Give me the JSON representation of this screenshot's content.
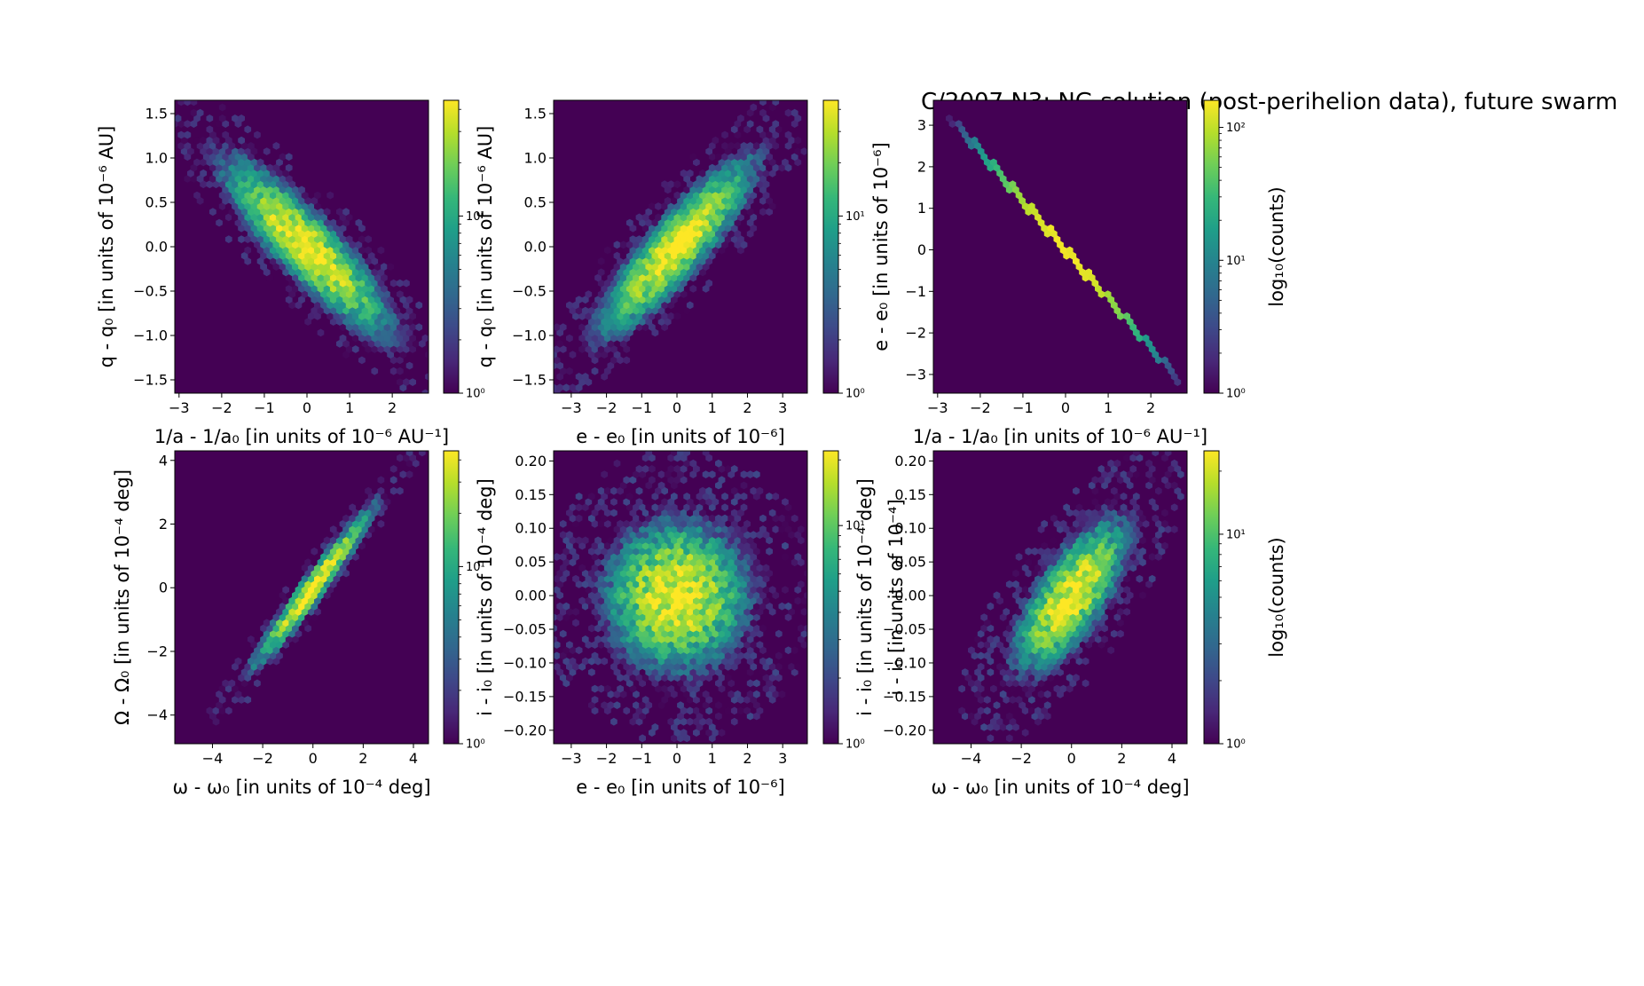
{
  "figure": {
    "title": "C/2007 N3:  NG solution (post-perihelion data), future swarm"
  },
  "colormap": {
    "name": "viridis",
    "stops": [
      "#440154",
      "#482878",
      "#3e4989",
      "#31688e",
      "#26828e",
      "#1f9e89",
      "#35b779",
      "#6ece58",
      "#b5de2b",
      "#fde725"
    ]
  },
  "chart_data": [
    {
      "type": "heatmap",
      "xlabel": "1/a - 1/a₀ [in units of 10⁻⁶ AU⁻¹]",
      "ylabel": "q - q₀ [in units of 10⁻⁶ AU]",
      "xlim": [
        -3.1,
        2.85
      ],
      "ylim": [
        -1.65,
        1.65
      ],
      "xticks": [
        -3,
        -2,
        -1,
        0,
        1,
        2
      ],
      "xtick_labels": [
        "−3",
        "−2",
        "−1",
        "0",
        "1",
        "2"
      ],
      "yticks": [
        -1.5,
        -1.0,
        -0.5,
        0.0,
        0.5,
        1.0,
        1.5
      ],
      "ytick_labels": [
        "−1.5",
        "−1.0",
        "−0.5",
        "0.0",
        "0.5",
        "1.0",
        "1.5"
      ],
      "distribution": {
        "mean": [
          0,
          0
        ],
        "sigma": [
          0.9,
          0.45
        ],
        "correlation": -0.88
      },
      "colorbar": {
        "scale": "log",
        "min": 1,
        "max": 45,
        "ticks": [
          1,
          10
        ],
        "tick_labels": [
          "10⁰",
          "10¹"
        ],
        "label": ""
      }
    },
    {
      "type": "heatmap",
      "xlabel": "e - e₀ [in units of 10⁻⁶]",
      "ylabel": "q - q₀ [in units of 10⁻⁶ AU]",
      "xlim": [
        -3.5,
        3.7
      ],
      "ylim": [
        -1.65,
        1.65
      ],
      "xticks": [
        -3,
        -2,
        -1,
        0,
        1,
        2,
        3
      ],
      "xtick_labels": [
        "−3",
        "−2",
        "−1",
        "0",
        "1",
        "2",
        "3"
      ],
      "yticks": [
        -1.5,
        -1.0,
        -0.5,
        0.0,
        0.5,
        1.0,
        1.5
      ],
      "ytick_labels": [
        "−1.5",
        "−1.0",
        "−0.5",
        "0.0",
        "0.5",
        "1.0",
        "1.5"
      ],
      "distribution": {
        "mean": [
          0,
          0
        ],
        "sigma": [
          1.0,
          0.45
        ],
        "correlation": 0.88
      },
      "colorbar": {
        "scale": "log",
        "min": 1,
        "max": 45,
        "ticks": [
          1,
          10
        ],
        "tick_labels": [
          "10⁰",
          "10¹"
        ],
        "label": ""
      }
    },
    {
      "type": "heatmap",
      "xlabel": "1/a - 1/a₀ [in units of 10⁻⁶ AU⁻¹]",
      "ylabel": "e - e₀ [in units of 10⁻⁶]",
      "xlim": [
        -3.1,
        2.85
      ],
      "ylim": [
        -3.45,
        3.6
      ],
      "xticks": [
        -3,
        -2,
        -1,
        0,
        1,
        2
      ],
      "xtick_labels": [
        "−3",
        "−2",
        "−1",
        "0",
        "1",
        "2"
      ],
      "yticks": [
        -3,
        -2,
        -1,
        0,
        1,
        2,
        3
      ],
      "ytick_labels": [
        "−3",
        "−2",
        "−1",
        "0",
        "1",
        "2",
        "3"
      ],
      "distribution": {
        "mean": [
          0,
          0
        ],
        "sigma": [
          0.9,
          1.0
        ],
        "correlation": -1.0,
        "slope": -1.18
      },
      "colorbar": {
        "scale": "log",
        "min": 1,
        "max": 160,
        "ticks": [
          1,
          10,
          100
        ],
        "tick_labels": [
          "10⁰",
          "10¹",
          "10²"
        ],
        "label": "log₁₀(counts)"
      }
    },
    {
      "type": "heatmap",
      "xlabel": "ω - ω₀ [in units of 10⁻⁴ deg]",
      "ylabel": "Ω - Ω₀ [in units of 10⁻⁴ deg]",
      "xlim": [
        -5.5,
        4.6
      ],
      "ylim": [
        -4.9,
        4.3
      ],
      "xticks": [
        -4,
        -2,
        0,
        2,
        4
      ],
      "xtick_labels": [
        "−4",
        "−2",
        "0",
        "2",
        "4"
      ],
      "yticks": [
        -4,
        -2,
        0,
        2,
        4
      ],
      "ytick_labels": [
        "−4",
        "−2",
        "0",
        "2",
        "4"
      ],
      "distribution": {
        "mean": [
          0,
          0
        ],
        "sigma": [
          1.1,
          1.15
        ],
        "correlation": 0.97
      },
      "colorbar": {
        "scale": "log",
        "min": 1,
        "max": 45,
        "ticks": [
          1,
          10
        ],
        "tick_labels": [
          "10⁰",
          "10¹"
        ],
        "label": ""
      }
    },
    {
      "type": "heatmap",
      "xlabel": "e - e₀ [in units of 10⁻⁶]",
      "ylabel": "i - i₀ [in units of 10⁻⁴ deg]",
      "xlim": [
        -3.5,
        3.7
      ],
      "ylim": [
        -0.22,
        0.215
      ],
      "xticks": [
        -3,
        -2,
        -1,
        0,
        1,
        2,
        3
      ],
      "xtick_labels": [
        "−3",
        "−2",
        "−1",
        "0",
        "1",
        "2",
        "3"
      ],
      "yticks": [
        -0.2,
        -0.15,
        -0.1,
        -0.05,
        0.0,
        0.05,
        0.1,
        0.15,
        0.2
      ],
      "ytick_labels": [
        "−0.20",
        "−0.15",
        "−0.10",
        "−0.05",
        "0.00",
        "0.05",
        "0.10",
        "0.15",
        "0.20"
      ],
      "distribution": {
        "mean": [
          0,
          0
        ],
        "sigma": [
          1.0,
          0.055
        ],
        "correlation": 0.0
      },
      "colorbar": {
        "scale": "log",
        "min": 1,
        "max": 22,
        "ticks": [
          1,
          10
        ],
        "tick_labels": [
          "10⁰",
          "10¹"
        ],
        "label": "i - i₀ [in units of 10⁻⁴]"
      }
    },
    {
      "type": "heatmap",
      "xlabel": "ω - ω₀ [in units of 10⁻⁴ deg]",
      "ylabel": "i - i₀ [in units of 10⁻⁴ deg]",
      "xlim": [
        -5.5,
        4.6
      ],
      "ylim": [
        -0.22,
        0.215
      ],
      "xticks": [
        -4,
        -2,
        0,
        2,
        4
      ],
      "xtick_labels": [
        "−4",
        "−2",
        "0",
        "2",
        "4"
      ],
      "yticks": [
        -0.2,
        -0.15,
        -0.1,
        -0.05,
        0.0,
        0.05,
        0.1,
        0.15,
        0.2
      ],
      "ytick_labels": [
        "−0.20",
        "−0.15",
        "−0.10",
        "−0.05",
        "0.00",
        "0.05",
        "0.10",
        "0.15",
        "0.20"
      ],
      "distribution": {
        "mean": [
          0,
          0
        ],
        "sigma": [
          1.1,
          0.055
        ],
        "correlation": 0.72
      },
      "colorbar": {
        "scale": "log",
        "min": 1,
        "max": 25,
        "ticks": [
          1,
          10
        ],
        "tick_labels": [
          "10⁰",
          "10¹"
        ],
        "label": "log₁₀(counts)"
      }
    }
  ]
}
